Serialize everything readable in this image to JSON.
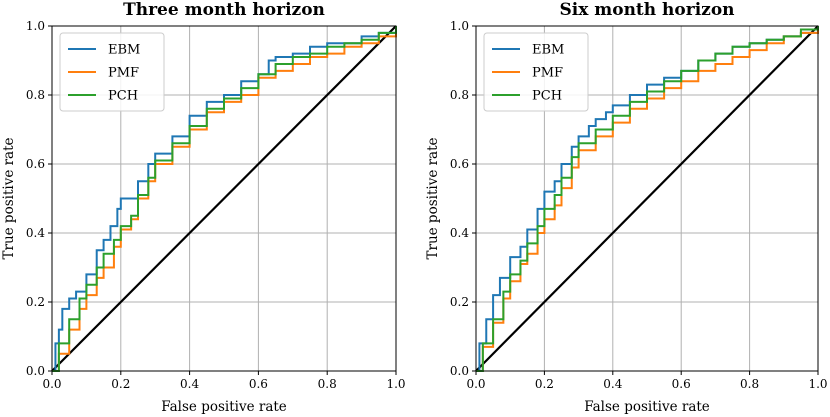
{
  "chart_data": [
    {
      "type": "line",
      "title": "Three month horizon",
      "xlabel": "False positive rate",
      "ylabel": "True positive rate",
      "xlim": [
        0,
        1
      ],
      "ylim": [
        0,
        1
      ],
      "xticks": [
        "0.0",
        "0.2",
        "0.4",
        "0.6",
        "0.8",
        "1.0"
      ],
      "yticks": [
        "0.0",
        "0.2",
        "0.4",
        "0.6",
        "0.8",
        "1.0"
      ],
      "grid": true,
      "legend": "top-left",
      "series": [
        {
          "name": "EBM",
          "color": "#1f77b4",
          "x": [
            0,
            0.01,
            0.02,
            0.03,
            0.05,
            0.07,
            0.1,
            0.13,
            0.15,
            0.17,
            0.19,
            0.2,
            0.25,
            0.28,
            0.3,
            0.35,
            0.4,
            0.45,
            0.5,
            0.55,
            0.6,
            0.63,
            0.65,
            0.7,
            0.75,
            0.8,
            0.85,
            0.9,
            0.95,
            1.0
          ],
          "y": [
            0,
            0.08,
            0.12,
            0.18,
            0.21,
            0.23,
            0.28,
            0.35,
            0.38,
            0.42,
            0.47,
            0.5,
            0.55,
            0.6,
            0.63,
            0.68,
            0.74,
            0.78,
            0.8,
            0.84,
            0.86,
            0.9,
            0.91,
            0.92,
            0.94,
            0.95,
            0.95,
            0.97,
            0.98,
            1.0
          ]
        },
        {
          "name": "PMF",
          "color": "#ff7f0e",
          "x": [
            0,
            0.02,
            0.05,
            0.08,
            0.1,
            0.13,
            0.15,
            0.18,
            0.2,
            0.23,
            0.25,
            0.28,
            0.3,
            0.35,
            0.4,
            0.45,
            0.5,
            0.55,
            0.6,
            0.65,
            0.7,
            0.75,
            0.8,
            0.85,
            0.9,
            0.95,
            1.0
          ],
          "y": [
            0,
            0.05,
            0.12,
            0.18,
            0.22,
            0.27,
            0.3,
            0.36,
            0.41,
            0.44,
            0.5,
            0.55,
            0.6,
            0.65,
            0.7,
            0.75,
            0.78,
            0.8,
            0.85,
            0.87,
            0.89,
            0.91,
            0.92,
            0.94,
            0.95,
            0.97,
            1.0
          ]
        },
        {
          "name": "PCH",
          "color": "#2ca02c",
          "x": [
            0,
            0.02,
            0.05,
            0.08,
            0.1,
            0.13,
            0.15,
            0.18,
            0.2,
            0.23,
            0.25,
            0.28,
            0.3,
            0.35,
            0.4,
            0.45,
            0.5,
            0.55,
            0.6,
            0.65,
            0.7,
            0.75,
            0.8,
            0.85,
            0.9,
            0.95,
            1.0
          ],
          "y": [
            0,
            0.08,
            0.15,
            0.21,
            0.25,
            0.3,
            0.34,
            0.38,
            0.42,
            0.45,
            0.51,
            0.56,
            0.61,
            0.66,
            0.71,
            0.76,
            0.79,
            0.82,
            0.86,
            0.89,
            0.91,
            0.92,
            0.94,
            0.95,
            0.96,
            0.98,
            1.0
          ]
        }
      ],
      "reference_line": {
        "x": [
          0,
          1
        ],
        "y": [
          0,
          1
        ],
        "color": "#000000"
      }
    },
    {
      "type": "line",
      "title": "Six month horizon",
      "xlabel": "False positive rate",
      "ylabel": "True positive rate",
      "xlim": [
        0,
        1
      ],
      "ylim": [
        0,
        1
      ],
      "xticks": [
        "0.0",
        "0.2",
        "0.4",
        "0.6",
        "0.8",
        "1.0"
      ],
      "yticks": [
        "0.0",
        "0.2",
        "0.4",
        "0.6",
        "0.8",
        "1.0"
      ],
      "grid": true,
      "legend": "top-left",
      "series": [
        {
          "name": "EBM",
          "color": "#1f77b4",
          "x": [
            0,
            0.01,
            0.03,
            0.05,
            0.07,
            0.1,
            0.13,
            0.15,
            0.18,
            0.2,
            0.23,
            0.25,
            0.28,
            0.3,
            0.33,
            0.35,
            0.38,
            0.4,
            0.45,
            0.5,
            0.55,
            0.6,
            0.65,
            0.7,
            0.75,
            0.8,
            0.85,
            0.9,
            0.95,
            1.0
          ],
          "y": [
            0,
            0.08,
            0.15,
            0.22,
            0.27,
            0.33,
            0.36,
            0.41,
            0.47,
            0.52,
            0.55,
            0.6,
            0.65,
            0.68,
            0.71,
            0.73,
            0.75,
            0.77,
            0.8,
            0.83,
            0.85,
            0.87,
            0.9,
            0.92,
            0.94,
            0.95,
            0.96,
            0.97,
            0.98,
            1.0
          ]
        },
        {
          "name": "PMF",
          "color": "#ff7f0e",
          "x": [
            0,
            0.02,
            0.05,
            0.08,
            0.1,
            0.13,
            0.15,
            0.18,
            0.2,
            0.23,
            0.25,
            0.28,
            0.3,
            0.35,
            0.4,
            0.45,
            0.5,
            0.55,
            0.6,
            0.65,
            0.7,
            0.75,
            0.8,
            0.85,
            0.9,
            0.95,
            1.0
          ],
          "y": [
            0,
            0.07,
            0.14,
            0.21,
            0.26,
            0.31,
            0.34,
            0.4,
            0.44,
            0.48,
            0.53,
            0.59,
            0.64,
            0.68,
            0.72,
            0.76,
            0.79,
            0.82,
            0.84,
            0.87,
            0.89,
            0.91,
            0.93,
            0.95,
            0.97,
            0.98,
            1.0
          ]
        },
        {
          "name": "PCH",
          "color": "#2ca02c",
          "x": [
            0,
            0.02,
            0.05,
            0.08,
            0.1,
            0.13,
            0.15,
            0.18,
            0.2,
            0.23,
            0.25,
            0.28,
            0.3,
            0.35,
            0.4,
            0.45,
            0.5,
            0.55,
            0.6,
            0.65,
            0.7,
            0.75,
            0.8,
            0.85,
            0.9,
            0.95,
            1.0
          ],
          "y": [
            0,
            0.08,
            0.15,
            0.23,
            0.28,
            0.32,
            0.37,
            0.42,
            0.47,
            0.51,
            0.56,
            0.62,
            0.66,
            0.7,
            0.74,
            0.78,
            0.81,
            0.84,
            0.87,
            0.9,
            0.92,
            0.94,
            0.95,
            0.96,
            0.97,
            0.99,
            1.0
          ]
        }
      ],
      "reference_line": {
        "x": [
          0,
          1
        ],
        "y": [
          0,
          1
        ],
        "color": "#000000"
      }
    }
  ]
}
